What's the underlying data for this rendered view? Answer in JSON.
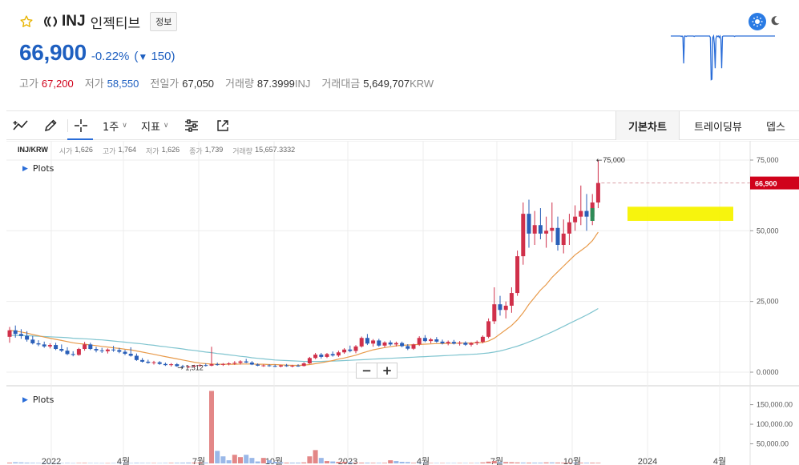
{
  "header": {
    "symbol": "INJ",
    "name": "인젝티브",
    "info_label": "정보",
    "price": "66,900",
    "change_pct": "-0.22%",
    "change_value": "150",
    "stats": [
      {
        "label": "고가",
        "value": "67,200",
        "unit": "",
        "tone": "up"
      },
      {
        "label": "저가",
        "value": "58,550",
        "unit": "",
        "tone": "down"
      },
      {
        "label": "전일가",
        "value": "67,050",
        "unit": "",
        "tone": ""
      },
      {
        "label": "거래량",
        "value": "87.3999",
        "unit": "INJ",
        "tone": ""
      },
      {
        "label": "거래대금",
        "value": "5,649,707",
        "unit": "KRW",
        "tone": ""
      }
    ]
  },
  "toolbar": {
    "interval_label": "1주",
    "indicator_label": "지표",
    "tabs": [
      "기본차트",
      "트레이딩뷰",
      "뎁스"
    ]
  },
  "chart": {
    "pair": "INJ/KRW",
    "ohlc": [
      {
        "label": "시가",
        "value": "1,626"
      },
      {
        "label": "고가",
        "value": "1,764"
      },
      {
        "label": "저가",
        "value": "1,626"
      },
      {
        "label": "종가",
        "value": "1,739"
      },
      {
        "label": "거래량",
        "value": "15,657.3332"
      }
    ],
    "plots_label": "Plots",
    "volume_plots_label": "Plots",
    "zoom_out": "−",
    "zoom_in": "+"
  },
  "chart_data": {
    "type": "candlestick",
    "x_ticks": [
      "2022",
      "4월",
      "7월",
      "10월",
      "2023",
      "4월",
      "7월",
      "10월",
      "2024",
      "4월"
    ],
    "y_ticks": [
      "75,000",
      "50,000",
      "25,000",
      "0.0000"
    ],
    "y_range": [
      0,
      75000
    ],
    "current_price_label": "66,900",
    "high_marker": "75,000",
    "low_marker": "1,512",
    "volume_ticks": [
      "150,000.00",
      "100,000.00",
      "50,000.00"
    ],
    "volume_range": [
      0,
      190000
    ],
    "grid": true,
    "colors": {
      "up": "#d0304a",
      "down": "#2a5fb8",
      "ma_short": "#e89a4a",
      "ma_long": "#7fc4cf",
      "highlight": "#f7f300",
      "price_tag": "#d0021b"
    },
    "candles": [
      [
        12500,
        16000,
        10400,
        14800
      ],
      [
        14800,
        16500,
        12200,
        13500
      ],
      [
        13500,
        15200,
        11800,
        12800
      ],
      [
        12800,
        14500,
        10800,
        11500
      ],
      [
        11500,
        12800,
        9800,
        10200
      ],
      [
        10200,
        11300,
        9200,
        9800
      ],
      [
        9800,
        10800,
        8600,
        9100
      ],
      [
        9100,
        10200,
        8400,
        9600
      ],
      [
        9600,
        10400,
        7800,
        8200
      ],
      [
        8200,
        9800,
        7100,
        7600
      ],
      [
        7600,
        8800,
        6000,
        6400
      ],
      [
        6400,
        7400,
        5600,
        6100
      ],
      [
        6100,
        8600,
        5800,
        8200
      ],
      [
        8200,
        10700,
        7600,
        9800
      ],
      [
        9800,
        10400,
        7800,
        8200
      ],
      [
        8200,
        9000,
        7000,
        7700
      ],
      [
        7700,
        8600,
        6800,
        7400
      ],
      [
        7400,
        8400,
        6600,
        8000
      ],
      [
        8000,
        9300,
        7200,
        7800
      ],
      [
        7800,
        8600,
        6700,
        7200
      ],
      [
        7200,
        7900,
        6000,
        6500
      ],
      [
        6500,
        8800,
        5500,
        5800
      ],
      [
        5800,
        6600,
        4000,
        4300
      ],
      [
        4300,
        5000,
        3400,
        3700
      ],
      [
        3700,
        4400,
        3000,
        3300
      ],
      [
        3300,
        4000,
        2700,
        3500
      ],
      [
        3500,
        3900,
        2600,
        2900
      ],
      [
        2900,
        3400,
        2200,
        2500
      ],
      [
        2500,
        3200,
        2000,
        2800
      ],
      [
        2800,
        3200,
        1900,
        2100
      ],
      [
        2100,
        2600,
        1600,
        1900
      ],
      [
        1900,
        2300,
        1512,
        2000
      ],
      [
        2000,
        2600,
        1700,
        2300
      ],
      [
        2300,
        2800,
        1900,
        2500
      ],
      [
        2500,
        3100,
        2000,
        2300
      ],
      [
        2300,
        9000,
        2100,
        2800
      ],
      [
        2800,
        3400,
        2300,
        2600
      ],
      [
        2600,
        3200,
        2200,
        2900
      ],
      [
        2900,
        3500,
        2400,
        3100
      ],
      [
        3100,
        3900,
        2600,
        3300
      ],
      [
        3300,
        4200,
        2700,
        3800
      ],
      [
        3800,
        4700,
        3200,
        3400
      ],
      [
        3400,
        3900,
        2500,
        2700
      ],
      [
        2700,
        3100,
        2100,
        2300
      ],
      [
        2300,
        2700,
        1900,
        2400
      ],
      [
        2400,
        2800,
        1900,
        2200
      ],
      [
        2200,
        2700,
        1800,
        2000
      ],
      [
        2000,
        2600,
        1700,
        2400
      ],
      [
        2400,
        2900,
        1900,
        2100
      ],
      [
        2100,
        2600,
        1700,
        2300
      ],
      [
        2300,
        2800,
        1900,
        2200
      ],
      [
        2200,
        3500,
        2000,
        3100
      ],
      [
        3100,
        5400,
        2900,
        5000
      ],
      [
        5000,
        6800,
        4600,
        6200
      ],
      [
        6200,
        6800,
        4800,
        5400
      ],
      [
        5400,
        6800,
        5000,
        6400
      ],
      [
        6400,
        7300,
        5500,
        5900
      ],
      [
        5900,
        7600,
        5400,
        7000
      ],
      [
        7000,
        8500,
        6500,
        8000
      ],
      [
        8000,
        9400,
        7000,
        7500
      ],
      [
        7500,
        9600,
        6700,
        9100
      ],
      [
        9100,
        12600,
        8700,
        12100
      ],
      [
        12100,
        13500,
        9600,
        10100
      ],
      [
        10100,
        11700,
        9000,
        11200
      ],
      [
        11200,
        11800,
        9000,
        9400
      ],
      [
        9400,
        10900,
        8800,
        10500
      ],
      [
        10500,
        11200,
        9300,
        9800
      ],
      [
        9800,
        10800,
        9100,
        10300
      ],
      [
        10300,
        10800,
        8800,
        9200
      ],
      [
        9200,
        9900,
        7800,
        8300
      ],
      [
        8300,
        10100,
        7900,
        9800
      ],
      [
        9800,
        12700,
        9300,
        12100
      ],
      [
        12100,
        13100,
        10600,
        11000
      ],
      [
        11000,
        12100,
        10200,
        11600
      ],
      [
        11600,
        12400,
        10400,
        10800
      ],
      [
        10800,
        11500,
        9800,
        10200
      ],
      [
        10200,
        11200,
        9500,
        10700
      ],
      [
        10700,
        11400,
        9800,
        10100
      ],
      [
        10100,
        11000,
        9400,
        10400
      ],
      [
        10400,
        10900,
        9300,
        9700
      ],
      [
        9700,
        10600,
        9100,
        10300
      ],
      [
        10300,
        11200,
        9600,
        10700
      ],
      [
        10700,
        13000,
        10200,
        12500
      ],
      [
        12500,
        19000,
        12000,
        18000
      ],
      [
        18000,
        30000,
        17000,
        24000
      ],
      [
        24000,
        27000,
        20000,
        22000
      ],
      [
        22000,
        25000,
        19000,
        23500
      ],
      [
        23500,
        30000,
        21000,
        28000
      ],
      [
        28000,
        43000,
        27000,
        41000
      ],
      [
        41000,
        60000,
        38000,
        56000
      ],
      [
        56000,
        61000,
        44000,
        49000
      ],
      [
        49000,
        57000,
        45000,
        52000
      ],
      [
        52000,
        58000,
        47000,
        49000
      ],
      [
        49000,
        55000,
        44000,
        50000
      ],
      [
        50000,
        60000,
        46000,
        51000
      ],
      [
        51000,
        55000,
        43000,
        45000
      ],
      [
        45000,
        54000,
        42000,
        49000
      ],
      [
        49000,
        56000,
        45000,
        53000
      ],
      [
        53000,
        59000,
        50000,
        55000
      ],
      [
        55000,
        66000,
        52000,
        57000
      ],
      [
        57000,
        63000,
        50000,
        55000
      ],
      [
        55000,
        63000,
        52000,
        60000
      ],
      [
        60000,
        75000,
        58000,
        66900
      ]
    ],
    "ma_short": [
      14800,
      14500,
      14200,
      13800,
      13300,
      12900,
      12400,
      12000,
      11600,
      11200,
      10800,
      10400,
      10100,
      9900,
      9600,
      9400,
      9100,
      8900,
      8600,
      8400,
      8100,
      7900,
      7500,
      7100,
      6700,
      6300,
      5900,
      5500,
      5100,
      4700,
      4300,
      3900,
      3500,
      3200,
      3000,
      2900,
      2800,
      2800,
      2800,
      2800,
      2900,
      2900,
      2900,
      2800,
      2800,
      2700,
      2700,
      2600,
      2500,
      2400,
      2400,
      2500,
      2700,
      3000,
      3300,
      3700,
      4100,
      4600,
      5000,
      5500,
      6000,
      6700,
      7300,
      7900,
      8300,
      8700,
      9000,
      9300,
      9500,
      9600,
      9700,
      9800,
      9900,
      10000,
      10100,
      10100,
      10200,
      10200,
      10300,
      10300,
      10300,
      10400,
      10500,
      11000,
      12000,
      13500,
      15000,
      16500,
      18500,
      21000,
      24000,
      26500,
      29000,
      31000,
      33500,
      35500,
      37500,
      39500,
      41500,
      43000,
      44500,
      46500,
      49500
    ],
    "ma_long": [
      13000,
      13000,
      12900,
      12900,
      12800,
      12700,
      12600,
      12500,
      12400,
      12300,
      12200,
      12000,
      11900,
      11800,
      11700,
      11500,
      11400,
      11200,
      11000,
      10800,
      10600,
      10400,
      10200,
      10000,
      9700,
      9500,
      9200,
      9000,
      8700,
      8500,
      8200,
      7900,
      7700,
      7400,
      7100,
      6900,
      6600,
      6400,
      6100,
      5900,
      5600,
      5400,
      5100,
      4900,
      4700,
      4500,
      4300,
      4200,
      4100,
      4000,
      3900,
      3800,
      3800,
      3800,
      3800,
      3900,
      3900,
      4000,
      4100,
      4200,
      4300,
      4400,
      4500,
      4600,
      4700,
      4800,
      4900,
      5000,
      5100,
      5200,
      5300,
      5400,
      5500,
      5600,
      5700,
      5800,
      5900,
      6000,
      6100,
      6200,
      6300,
      6400,
      6600,
      6800,
      7100,
      7500,
      8000,
      8600,
      9200,
      9900,
      10700,
      11500,
      12400,
      13300,
      14200,
      15200,
      16200,
      17200,
      18200,
      19200,
      20200,
      21300,
      22500
    ],
    "volumes": [
      [
        2000,
        0
      ],
      [
        3000,
        1
      ],
      [
        2500,
        1
      ],
      [
        2000,
        1
      ],
      [
        1500,
        1
      ],
      [
        1200,
        1
      ],
      [
        1500,
        1
      ],
      [
        1200,
        1
      ],
      [
        1100,
        1
      ],
      [
        900,
        1
      ],
      [
        1200,
        1
      ],
      [
        800,
        1
      ],
      [
        1100,
        0
      ],
      [
        1300,
        0
      ],
      [
        1000,
        1
      ],
      [
        900,
        1
      ],
      [
        800,
        1
      ],
      [
        800,
        0
      ],
      [
        900,
        1
      ],
      [
        800,
        1
      ],
      [
        900,
        1
      ],
      [
        900,
        1
      ],
      [
        1500,
        1
      ],
      [
        1200,
        1
      ],
      [
        1100,
        1
      ],
      [
        1000,
        0
      ],
      [
        900,
        1
      ],
      [
        1200,
        1
      ],
      [
        1400,
        0
      ],
      [
        1600,
        1
      ],
      [
        1900,
        1
      ],
      [
        2200,
        1
      ],
      [
        2200,
        0
      ],
      [
        2400,
        0
      ],
      [
        2200,
        1
      ],
      [
        185000,
        0
      ],
      [
        32000,
        1
      ],
      [
        18000,
        1
      ],
      [
        8000,
        1
      ],
      [
        22000,
        0
      ],
      [
        16000,
        0
      ],
      [
        22000,
        1
      ],
      [
        14000,
        1
      ],
      [
        5000,
        1
      ],
      [
        14000,
        0
      ],
      [
        8000,
        1
      ],
      [
        4000,
        1
      ],
      [
        3000,
        1
      ],
      [
        2000,
        0
      ],
      [
        2000,
        1
      ],
      [
        2000,
        1
      ],
      [
        2500,
        0
      ],
      [
        18000,
        0
      ],
      [
        34000,
        0
      ],
      [
        14000,
        1
      ],
      [
        6000,
        0
      ],
      [
        5000,
        1
      ],
      [
        4000,
        0
      ],
      [
        4000,
        0
      ],
      [
        3000,
        1
      ],
      [
        2000,
        0
      ],
      [
        2000,
        0
      ],
      [
        2000,
        1
      ],
      [
        1500,
        0
      ],
      [
        1500,
        1
      ],
      [
        1500,
        0
      ],
      [
        8000,
        0
      ],
      [
        6000,
        1
      ],
      [
        4000,
        1
      ],
      [
        3500,
        1
      ],
      [
        1500,
        0
      ],
      [
        1500,
        1
      ],
      [
        1000,
        1
      ],
      [
        1000,
        0
      ],
      [
        1000,
        1
      ],
      [
        1000,
        0
      ],
      [
        1000,
        1
      ],
      [
        1000,
        1
      ],
      [
        1000,
        0
      ],
      [
        1000,
        1
      ],
      [
        1000,
        0
      ],
      [
        1200,
        1
      ],
      [
        2500,
        0
      ],
      [
        4500,
        0
      ],
      [
        6000,
        0
      ],
      [
        3000,
        1
      ],
      [
        3500,
        0
      ],
      [
        3000,
        0
      ],
      [
        2500,
        0
      ],
      [
        2200,
        1
      ],
      [
        2000,
        0
      ],
      [
        2000,
        1
      ],
      [
        2000,
        1
      ],
      [
        2500,
        0
      ],
      [
        2500,
        1
      ],
      [
        2200,
        0
      ],
      [
        2000,
        0
      ],
      [
        2000,
        0
      ],
      [
        1800,
        1
      ],
      [
        1800,
        0
      ],
      [
        1800,
        1
      ],
      [
        1800,
        0
      ],
      [
        1500,
        0
      ]
    ]
  },
  "mini_chart": {
    "color": "#2a6dd8",
    "baseline": 0.05,
    "points": [
      0.05,
      0.05,
      0.05,
      0.05,
      0.05,
      0.05,
      0.05,
      0.05,
      0.05,
      0.05,
      0.05,
      0.05,
      0.05,
      0.06,
      0.05,
      0.07,
      0.62,
      0.05,
      0.05,
      0.06,
      0.05,
      0.05,
      0.05,
      0.05,
      0.05,
      0.05,
      0.05,
      0.05,
      0.05,
      0.06,
      0.05,
      0.05,
      0.05,
      0.05,
      0.05,
      0.05,
      0.05,
      0.05,
      0.05,
      0.05,
      0.05,
      0.05,
      0.05,
      0.05,
      0.05,
      0.05,
      0.05,
      0.05,
      0.05,
      0.08,
      0.96,
      0.95,
      0.08,
      0.05,
      0.22,
      0.72,
      0.1,
      0.05,
      0.06,
      0.05,
      0.08,
      0.05,
      0.12,
      0.72,
      0.06,
      0.05,
      0.05,
      0.05,
      0.05,
      0.05,
      0.05,
      0.05,
      0.05,
      0.05,
      0.05,
      0.05,
      0.05,
      0.05,
      0.05,
      0.06,
      0.05,
      0.05,
      0.05,
      0.05,
      0.05,
      0.05,
      0.05,
      0.05,
      0.05,
      0.05,
      0.05,
      0.05,
      0.05,
      0.05,
      0.05,
      0.05,
      0.05,
      0.05,
      0.05,
      0.05,
      0.05,
      0.05,
      0.05,
      0.05,
      0.05,
      0.05,
      0.05,
      0.05,
      0.05,
      0.05,
      0.05,
      0.05,
      0.05,
      0.05,
      0.05,
      0.05,
      0.05,
      0.05,
      0.05,
      0.05,
      0.05,
      0.05,
      0.05,
      0.05,
      0.05,
      0.05,
      0.05,
      0.05,
      0.05,
      0.05
    ]
  }
}
